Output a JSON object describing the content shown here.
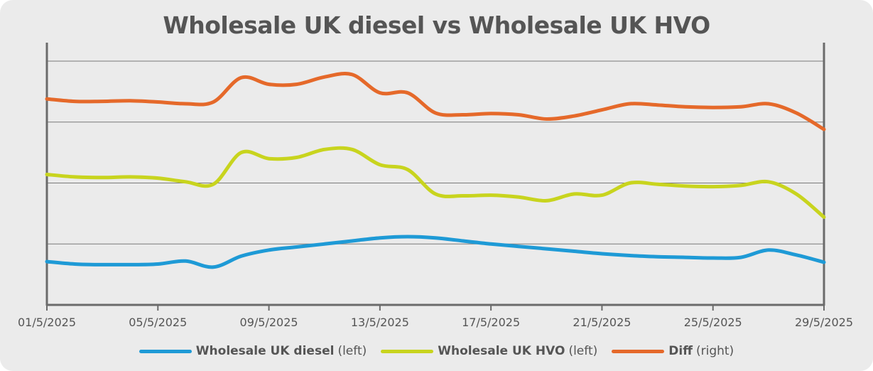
{
  "chart_data": {
    "type": "line",
    "title": "Wholesale UK diesel vs Wholesale UK HVO",
    "x_ticks": [
      "01/5/2025",
      "05/5/2025",
      "09/5/2025",
      "13/5/2025",
      "17/5/2025",
      "21/5/2025",
      "25/5/2025",
      "29/5/2025"
    ],
    "x_range": [
      "01/5/2025",
      "29/5/2025"
    ],
    "grid": "horizontal",
    "left_axis": {
      "ylim": [
        0,
        4
      ],
      "tick_labels_shown": false
    },
    "right_axis": {
      "ylim": [
        0,
        4
      ],
      "tick_labels_shown": false
    },
    "legend": {
      "placement": "bottom"
    },
    "series": [
      {
        "name": "Wholesale UK diesel",
        "axis_label": "(left)",
        "axis": "left",
        "color": "#1e9ad6",
        "points": [
          [
            1,
            0.71
          ],
          [
            2,
            0.67
          ],
          [
            3,
            0.66
          ],
          [
            4,
            0.66
          ],
          [
            5,
            0.67
          ],
          [
            6,
            0.72
          ],
          [
            7,
            0.62
          ],
          [
            8,
            0.8
          ],
          [
            9,
            0.9
          ],
          [
            10,
            0.95
          ],
          [
            11,
            1.0
          ],
          [
            12,
            1.05
          ],
          [
            13,
            1.1
          ],
          [
            14,
            1.12
          ],
          [
            15,
            1.1
          ],
          [
            16,
            1.05
          ],
          [
            17,
            1.0
          ],
          [
            18,
            0.96
          ],
          [
            19,
            0.92
          ],
          [
            20,
            0.88
          ],
          [
            21,
            0.84
          ],
          [
            22,
            0.81
          ],
          [
            23,
            0.79
          ],
          [
            24,
            0.78
          ],
          [
            25,
            0.77
          ],
          [
            26,
            0.78
          ],
          [
            27,
            0.9
          ],
          [
            28,
            0.82
          ],
          [
            29,
            0.7
          ]
        ]
      },
      {
        "name": "Wholesale UK HVO",
        "axis_label": "(left)",
        "axis": "left",
        "color": "#c8d41e",
        "points": [
          [
            1,
            2.14
          ],
          [
            2,
            2.1
          ],
          [
            3,
            2.09
          ],
          [
            4,
            2.1
          ],
          [
            5,
            2.08
          ],
          [
            6,
            2.02
          ],
          [
            7,
            1.98
          ],
          [
            8,
            2.5
          ],
          [
            9,
            2.4
          ],
          [
            10,
            2.42
          ],
          [
            11,
            2.55
          ],
          [
            12,
            2.55
          ],
          [
            13,
            2.3
          ],
          [
            14,
            2.22
          ],
          [
            15,
            1.82
          ],
          [
            16,
            1.79
          ],
          [
            17,
            1.8
          ],
          [
            18,
            1.77
          ],
          [
            19,
            1.71
          ],
          [
            20,
            1.82
          ],
          [
            21,
            1.8
          ],
          [
            22,
            2.0
          ],
          [
            23,
            1.98
          ],
          [
            24,
            1.95
          ],
          [
            25,
            1.94
          ],
          [
            26,
            1.96
          ],
          [
            27,
            2.02
          ],
          [
            28,
            1.82
          ],
          [
            29,
            1.44
          ]
        ]
      },
      {
        "name": "Diff",
        "axis_label": "(right)",
        "axis": "right",
        "color": "#e5692a",
        "points": [
          [
            1,
            3.38
          ],
          [
            2,
            3.34
          ],
          [
            3,
            3.34
          ],
          [
            4,
            3.35
          ],
          [
            5,
            3.33
          ],
          [
            6,
            3.3
          ],
          [
            7,
            3.33
          ],
          [
            8,
            3.73
          ],
          [
            9,
            3.62
          ],
          [
            10,
            3.62
          ],
          [
            11,
            3.74
          ],
          [
            12,
            3.78
          ],
          [
            13,
            3.48
          ],
          [
            14,
            3.48
          ],
          [
            15,
            3.15
          ],
          [
            16,
            3.12
          ],
          [
            17,
            3.14
          ],
          [
            18,
            3.12
          ],
          [
            19,
            3.05
          ],
          [
            20,
            3.1
          ],
          [
            21,
            3.2
          ],
          [
            22,
            3.3
          ],
          [
            23,
            3.28
          ],
          [
            24,
            3.25
          ],
          [
            25,
            3.24
          ],
          [
            26,
            3.25
          ],
          [
            27,
            3.3
          ],
          [
            28,
            3.15
          ],
          [
            29,
            2.88
          ]
        ]
      }
    ]
  }
}
